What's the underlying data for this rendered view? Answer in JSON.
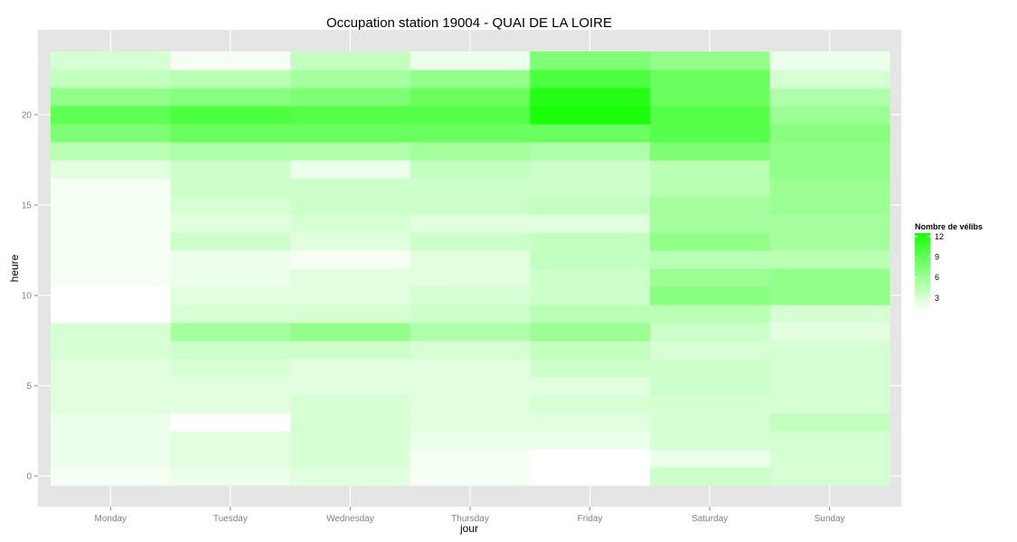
{
  "chart_data": {
    "type": "heatmap",
    "title": "Occupation station 19004 - QUAI DE LA LOIRE",
    "xlabel": "jour",
    "ylabel": "heure",
    "categories": [
      "Monday",
      "Tuesday",
      "Wednesday",
      "Thursday",
      "Friday",
      "Saturday",
      "Sunday"
    ],
    "hours": [
      0,
      1,
      2,
      3,
      4,
      5,
      6,
      7,
      8,
      9,
      10,
      11,
      12,
      13,
      14,
      15,
      16,
      17,
      18,
      19,
      20,
      21,
      22,
      23
    ],
    "y_ticks": [
      0,
      5,
      10,
      15,
      20
    ],
    "ylim": [
      -0.5,
      23.5
    ],
    "grid": true,
    "background_color": "#E5E5E5",
    "grid_color": "#FFFFFF",
    "legend": {
      "title": "Nombre de vélibs",
      "breaks": [
        3,
        6,
        9,
        12
      ],
      "range": [
        1,
        12.5
      ],
      "low_color": "#FFFFFF",
      "high_color": "#1AFF0A",
      "placement": "right"
    },
    "values": [
      [
        1.5,
        2.0,
        2.0,
        2.0,
        2.5,
        2.5,
        2.5,
        3.0,
        3.0,
        1.0,
        0.5,
        1.5,
        1.5,
        1.5,
        1.5,
        1.5,
        1.5,
        2.5,
        4.5,
        7.5,
        9.0,
        6.5,
        4.0,
        3.0
      ],
      [
        2.0,
        2.5,
        2.5,
        1.0,
        2.5,
        2.5,
        3.0,
        3.5,
        5.5,
        3.0,
        2.5,
        2.0,
        2.0,
        3.5,
        2.5,
        3.0,
        3.5,
        3.5,
        5.0,
        8.5,
        10.0,
        7.0,
        4.5,
        1.5
      ],
      [
        2.5,
        3.0,
        3.0,
        3.0,
        3.0,
        2.5,
        2.5,
        3.5,
        6.5,
        3.0,
        2.5,
        2.5,
        1.5,
        2.5,
        3.0,
        3.5,
        3.5,
        2.0,
        5.0,
        8.5,
        9.5,
        7.5,
        5.5,
        4.0
      ],
      [
        1.5,
        1.5,
        2.0,
        2.5,
        2.5,
        2.5,
        2.5,
        3.0,
        5.0,
        3.5,
        3.0,
        2.5,
        2.5,
        3.5,
        2.5,
        3.5,
        3.5,
        4.0,
        5.5,
        8.5,
        9.5,
        8.5,
        6.5,
        2.0
      ],
      [
        1.0,
        1.0,
        2.0,
        2.5,
        3.0,
        2.5,
        3.5,
        4.0,
        6.0,
        4.5,
        3.5,
        3.5,
        4.0,
        4.0,
        2.5,
        4.0,
        3.5,
        3.5,
        5.0,
        8.5,
        12.5,
        12.0,
        10.0,
        7.5
      ],
      [
        3.5,
        2.0,
        3.0,
        3.0,
        3.0,
        3.5,
        3.5,
        3.0,
        3.5,
        4.5,
        7.0,
        6.0,
        4.5,
        6.5,
        5.5,
        5.5,
        4.5,
        4.5,
        7.5,
        9.5,
        9.5,
        8.5,
        8.5,
        6.5
      ],
      [
        3.0,
        3.0,
        3.0,
        4.0,
        3.0,
        3.0,
        3.0,
        3.0,
        2.5,
        3.0,
        6.5,
        6.5,
        4.5,
        5.5,
        5.5,
        6.0,
        6.0,
        6.5,
        6.5,
        7.0,
        6.0,
        5.0,
        3.0,
        2.0
      ]
    ]
  }
}
